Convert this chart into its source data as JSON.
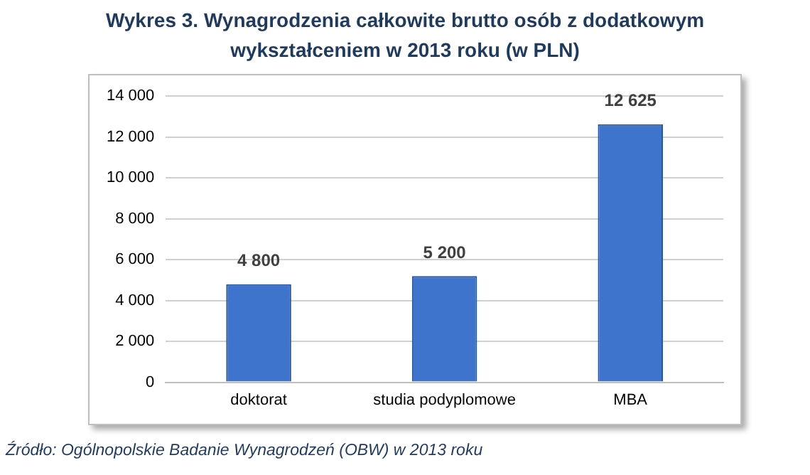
{
  "chart_data": {
    "type": "bar",
    "title": "Wykres 3. Wynagrodzenia całkowite brutto osób z dodatkowym wykształceniem w 2013 roku (w PLN)",
    "categories": [
      "doktorat",
      "studia podyplomowe",
      "MBA"
    ],
    "values": [
      4800,
      5200,
      12625
    ],
    "value_labels": [
      "4 800",
      "5 200",
      "12 625"
    ],
    "color": "#3f74cc",
    "ylim": [
      0,
      14000
    ],
    "yticks": [
      {
        "value": 0,
        "label": "0"
      },
      {
        "value": 2000,
        "label": "2 000"
      },
      {
        "value": 4000,
        "label": "4 000"
      },
      {
        "value": 6000,
        "label": "6 000"
      },
      {
        "value": 8000,
        "label": "8 000"
      },
      {
        "value": 10000,
        "label": "10 000"
      },
      {
        "value": 12000,
        "label": "12 000"
      },
      {
        "value": 14000,
        "label": "14 000"
      }
    ],
    "grid": "y",
    "annotations": [
      "Źródło: Ogólnopolskie Badanie Wynagrodzeń (OBW) w 2013 roku"
    ]
  }
}
